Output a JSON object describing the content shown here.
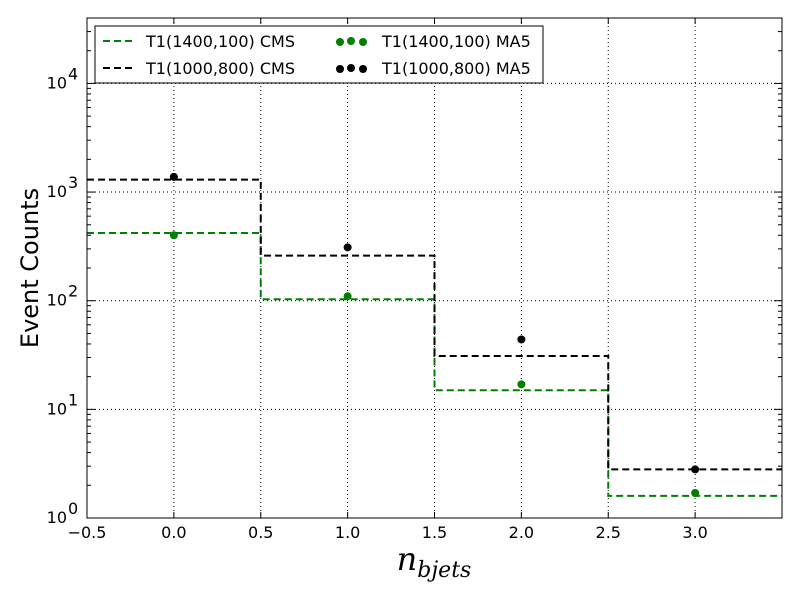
{
  "chart_data": {
    "type": "step",
    "xlabel": "n_bjets",
    "ylabel": "Event Counts",
    "xlim": [
      -0.5,
      3.5
    ],
    "ylim": [
      1,
      40000
    ],
    "yscale": "log",
    "grid": true,
    "legend_position": "top-left",
    "x_ticks": [
      -0.5,
      0.0,
      0.5,
      1.0,
      1.5,
      2.0,
      2.5,
      3.0
    ],
    "x_tick_labels": [
      "−0.5",
      "0.0",
      "0.5",
      "1.0",
      "1.5",
      "2.0",
      "2.5",
      "3.0"
    ],
    "y_ticks": [
      1,
      10,
      100,
      1000,
      10000
    ],
    "y_tick_labels": [
      {
        "base": "10",
        "exp": "0"
      },
      {
        "base": "10",
        "exp": "1"
      },
      {
        "base": "10",
        "exp": "2"
      },
      {
        "base": "10",
        "exp": "3"
      },
      {
        "base": "10",
        "exp": "4"
      }
    ],
    "bins": [
      [
        -0.5,
        0.5
      ],
      [
        0.5,
        1.5
      ],
      [
        1.5,
        2.5
      ],
      [
        2.5,
        3.5
      ]
    ],
    "series": [
      {
        "name": "T1(1400,100) CMS",
        "kind": "step",
        "color": "#008000",
        "dash": "dashed",
        "values": [
          420,
          103,
          15,
          1.6
        ]
      },
      {
        "name": "T1(1000,800) CMS",
        "kind": "step",
        "color": "#000000",
        "dash": "dashed",
        "values": [
          1300,
          260,
          31,
          2.8
        ]
      },
      {
        "name": "T1(1400,100) MA5",
        "kind": "scatter",
        "color": "#008000",
        "x": [
          0,
          1,
          2,
          3
        ],
        "values": [
          400,
          110,
          17,
          1.7
        ]
      },
      {
        "name": "T1(1000,800) MA5",
        "kind": "scatter",
        "color": "#000000",
        "x": [
          0,
          1,
          2,
          3
        ],
        "values": [
          1380,
          310,
          44,
          2.8
        ]
      }
    ]
  }
}
